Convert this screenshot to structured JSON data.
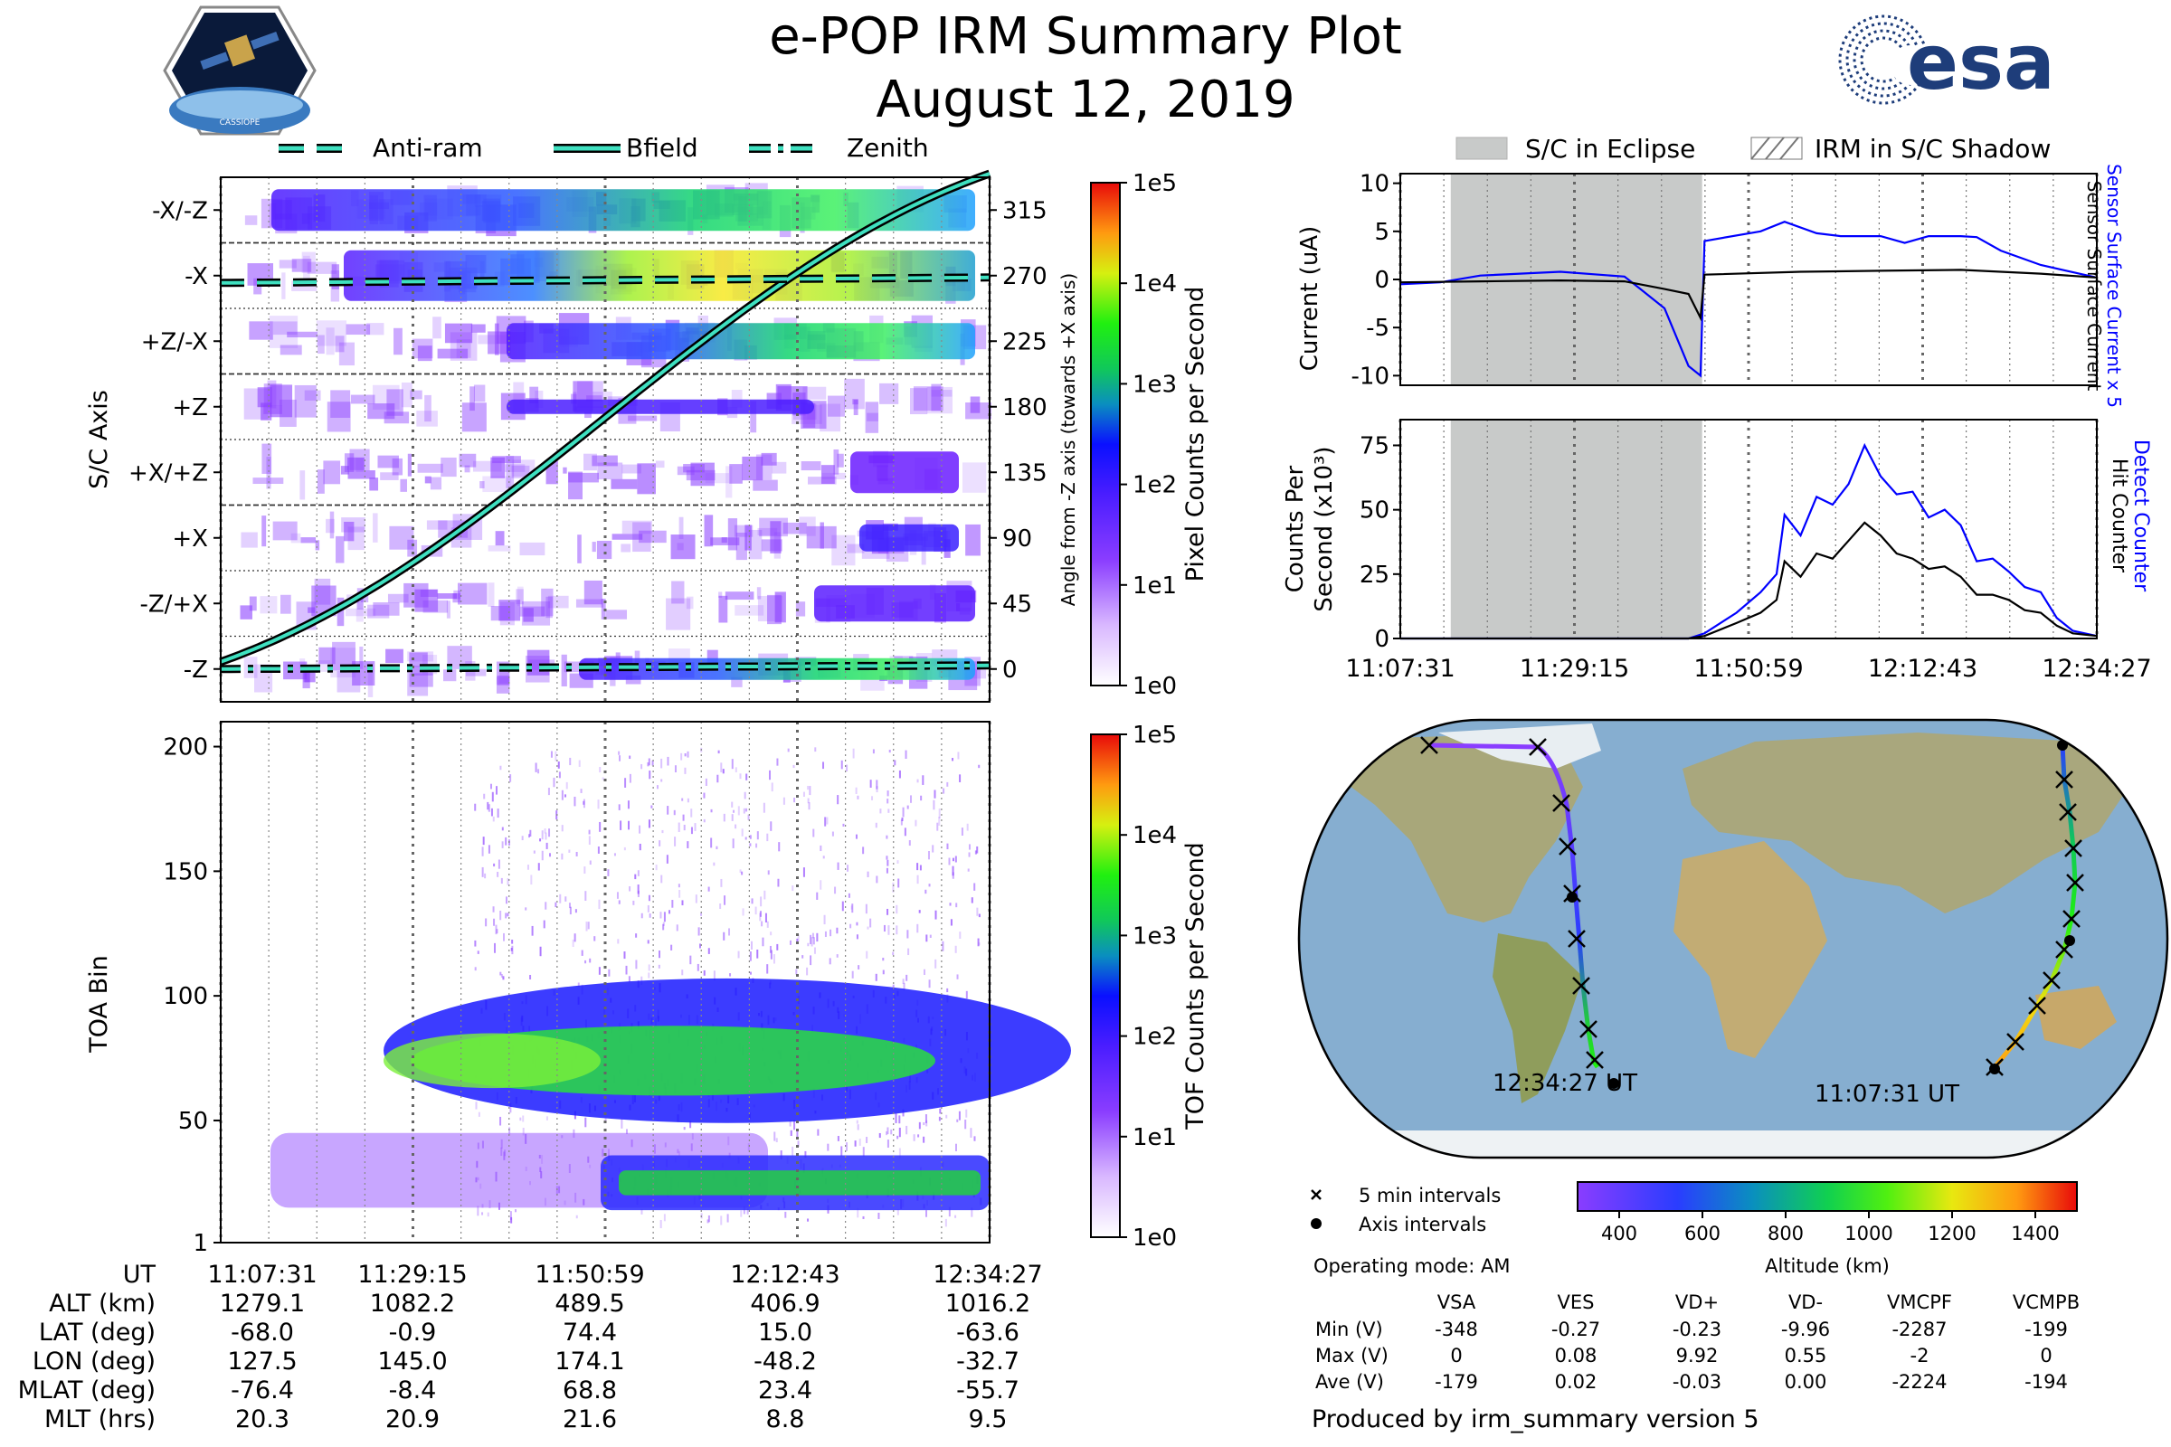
{
  "page": {
    "title": "e-POP IRM Summary Plot",
    "date": "August 12, 2019",
    "logo_left_text": "CASSIOPE",
    "logo_right_text": "esa",
    "produced_by": "Produced by irm_summary version 5",
    "operating_mode": "Operating mode: AM"
  },
  "time_labels": [
    "11:07:31",
    "11:29:15",
    "11:50:59",
    "12:12:43",
    "12:34:27"
  ],
  "axis_legend": {
    "entries": [
      "Anti-ram",
      "Bfield",
      "Zenith"
    ]
  },
  "eclipse_legend": {
    "entries": [
      "S/C in Eclipse",
      "IRM in S/C Shadow"
    ]
  },
  "ephemeris": {
    "rows": [
      {
        "label": "UT",
        "values": [
          "11:07:31",
          "11:29:15",
          "11:50:59",
          "12:12:43",
          "12:34:27"
        ]
      },
      {
        "label": "ALT (km)",
        "values": [
          "1279.1",
          "1082.2",
          "489.5",
          "406.9",
          "1016.2"
        ]
      },
      {
        "label": "LAT (deg)",
        "values": [
          "-68.0",
          "-0.9",
          "74.4",
          "15.0",
          "-63.6"
        ]
      },
      {
        "label": "LON (deg)",
        "values": [
          "127.5",
          "145.0",
          "174.1",
          "-48.2",
          "-32.7"
        ]
      },
      {
        "label": "MLAT (deg)",
        "values": [
          "-76.4",
          "-8.4",
          "68.8",
          "23.4",
          "-55.7"
        ]
      },
      {
        "label": "MLT (hrs)",
        "values": [
          "20.3",
          "20.9",
          "21.6",
          "8.8",
          "9.5"
        ]
      }
    ]
  },
  "voltage_table": {
    "columns": [
      "VSA",
      "VES",
      "VD+",
      "VD-",
      "VMCPF",
      "VCMPB"
    ],
    "rows": [
      {
        "label": "Min (V)",
        "values": [
          "-348",
          "-0.27",
          "-0.23",
          "-9.96",
          "-2287",
          "-199"
        ]
      },
      {
        "label": "Max (V)",
        "values": [
          "0",
          "0.08",
          "9.92",
          "0.55",
          "-2",
          "0"
        ]
      },
      {
        "label": "Ave (V)",
        "values": [
          "-179",
          "0.02",
          "-0.03",
          "0.00",
          "-2224",
          "-194"
        ]
      }
    ]
  },
  "map_legend": {
    "cross": "5 min intervals",
    "dot": "Axis intervals",
    "start_label": "11:07:31 UT",
    "end_label": "12:34:27 UT"
  },
  "chart_data": [
    {
      "id": "sc-axis-spectrogram",
      "type": "heatmap",
      "ylabel": "S/C Axis",
      "y_categories": [
        "-Z",
        "-Z/+X",
        "+X",
        "+X/+Z",
        "+Z",
        "+Z/-X",
        "-X",
        "-X/-Z"
      ],
      "right_ylabel": "Angle from -Z axis (towards +X axis)",
      "right_ticks": [
        0,
        45,
        90,
        135,
        180,
        225,
        270,
        315
      ],
      "colorbar_label": "Pixel Counts per Second",
      "colorbar_ticks": [
        "1e0",
        "1e1",
        "1e2",
        "1e3",
        "1e4",
        "1e5"
      ],
      "series": [
        {
          "name": "Bfield",
          "angle_start_end": [
            5,
            340
          ]
        },
        {
          "name": "Anti-ram",
          "angle_approx": 265
        },
        {
          "name": "Zenith",
          "angle_approx": 0
        }
      ]
    },
    {
      "id": "toa-spectrogram",
      "type": "heatmap",
      "ylabel": "TOA Bin",
      "yticks": [
        1,
        50,
        100,
        150,
        200
      ],
      "colorbar_label": "TOF Counts per Second",
      "colorbar_ticks": [
        "1e0",
        "1e1",
        "1e2",
        "1e3",
        "1e4",
        "1e5"
      ]
    },
    {
      "id": "current-plot",
      "type": "line",
      "ylabel": "Current (uA)",
      "ylim": [
        -11,
        11
      ],
      "yticks": [
        -10,
        -5,
        0,
        5,
        10
      ],
      "right_labels": [
        "Sensor Surface Current x 5",
        "Sensor Surface Current"
      ],
      "eclipse_minutes": [
        6.3,
        37.7
      ],
      "series": [
        {
          "name": "Sensor Surface Current x 5",
          "color": "#0000ff",
          "x_min": [
            0,
            5,
            10,
            20,
            28,
            30,
            33,
            36,
            37.5,
            38,
            45,
            48,
            52,
            55,
            60,
            63,
            66,
            70,
            72,
            75,
            80,
            87
          ],
          "y": [
            -0.5,
            -0.3,
            0.4,
            0.8,
            0.3,
            -1,
            -3,
            -9,
            -10,
            4,
            5,
            6,
            4.8,
            4.5,
            4.5,
            3.8,
            4.5,
            4.5,
            4.4,
            3,
            1.5,
            0.2
          ]
        },
        {
          "name": "Sensor Surface Current",
          "color": "#000000",
          "x_min": [
            0,
            10,
            20,
            28,
            33,
            36,
            37.5,
            38,
            50,
            60,
            70,
            80,
            87
          ],
          "y": [
            -0.3,
            -0.2,
            -0.1,
            -0.2,
            -1,
            -1.5,
            -4,
            0.5,
            0.8,
            0.9,
            1,
            0.6,
            0.2
          ]
        }
      ]
    },
    {
      "id": "counts-plot",
      "type": "line",
      "ylabel": "Counts Per Second (x10^3)",
      "ylim": [
        0,
        85
      ],
      "yticks": [
        0,
        25,
        50,
        75
      ],
      "right_labels": [
        "Detect Counter",
        "Hit Counter"
      ],
      "eclipse_minutes": [
        6.3,
        37.7
      ],
      "series": [
        {
          "name": "Detect Counter",
          "color": "#0000ff",
          "x_min": [
            0,
            36,
            38,
            42,
            45,
            47,
            48,
            50,
            52,
            54,
            56,
            58,
            60,
            62,
            64,
            66,
            68,
            70,
            72,
            74,
            76,
            78,
            80,
            82,
            84,
            87
          ],
          "y": [
            0,
            0,
            2,
            10,
            18,
            25,
            48,
            40,
            55,
            52,
            60,
            75,
            63,
            56,
            57,
            47,
            50,
            44,
            30,
            31,
            26,
            20,
            18,
            8,
            3,
            1
          ]
        },
        {
          "name": "Hit Counter",
          "color": "#000000",
          "x_min": [
            0,
            36,
            38,
            42,
            45,
            47,
            48,
            50,
            52,
            54,
            56,
            58,
            60,
            62,
            64,
            66,
            68,
            70,
            72,
            74,
            76,
            78,
            80,
            82,
            84,
            87
          ],
          "y": [
            0,
            0,
            1,
            6,
            10,
            15,
            30,
            24,
            33,
            31,
            38,
            45,
            40,
            33,
            31,
            27,
            28,
            24,
            17,
            17,
            15,
            11,
            10,
            5,
            2,
            1
          ]
        }
      ]
    },
    {
      "id": "orbit-map",
      "type": "scatter",
      "colorbar_label": "Altitude (km)",
      "colorbar_ticks": [
        400,
        600,
        800,
        1000,
        1200,
        1400
      ],
      "colorbar_range": [
        300,
        1500
      ]
    }
  ]
}
